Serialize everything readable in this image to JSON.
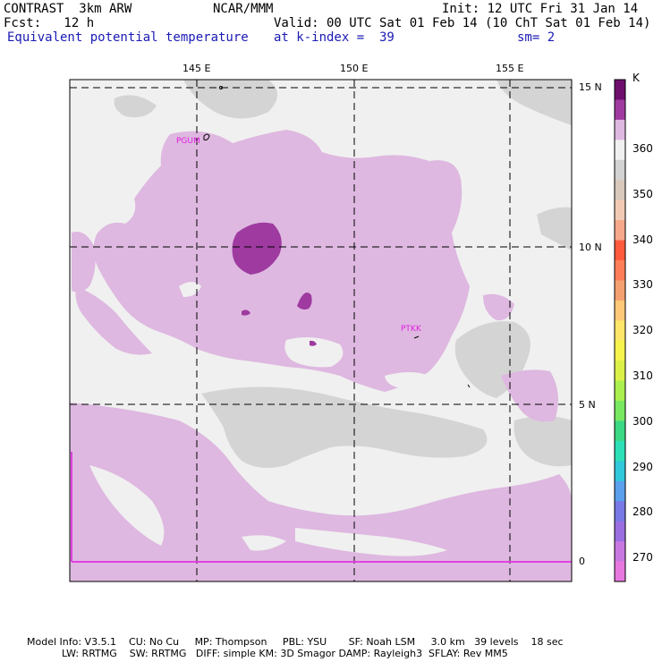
{
  "header": {
    "model": "CONTRAST  3km ARW",
    "org": "NCAR/MMM",
    "init": "Init: 12 UTC Fri 31 Jan 14",
    "fcst": "Fcst:   12 h",
    "valid": "Valid: 00 UTC Sat 01 Feb 14 (10 ChT Sat 01 Feb 14)",
    "field": "Equivalent potential temperature",
    "level": "at k-index =  39",
    "smooth": "sm= 2"
  },
  "axes": {
    "lon_labels": [
      "145 E",
      "150 E",
      "155 E"
    ],
    "lat_labels": [
      "15 N",
      "10 N",
      "5 N",
      "0"
    ]
  },
  "stations": [
    "PGUM",
    "PTKK"
  ],
  "colorbar": {
    "unit": "K",
    "labels": [
      "360",
      "350",
      "340",
      "330",
      "320",
      "310",
      "300",
      "290",
      "280",
      "270"
    ],
    "colors": [
      "#6e0f6e",
      "#9e3aa0",
      "#deb8e0",
      "#f0f0f0",
      "#d2d2d2",
      "#d8c8bc",
      "#f2cab4",
      "#f6a88a",
      "#ff5a3c",
      "#ff7e5a",
      "#f4a070",
      "#ffc878",
      "#ffe66a",
      "#f6f24e",
      "#dcf04a",
      "#aaf050",
      "#78e862",
      "#3cd884",
      "#2ee0b8",
      "#32c8dc",
      "#5aa0ec",
      "#7878e6",
      "#9a6ee0",
      "#c878e0",
      "#e678e0"
    ]
  },
  "footer": {
    "line1": "Model Info: V3.5.1    CU: No Cu     MP: Thompson     PBL: YSU       SF: Noah LSM     3.0 km   39 levels    18 sec",
    "line2": "LW: RRTMG    SW: RRTMG   DIFF: simple KM: 3D Smagor DAMP: Rayleigh3  SFLAY: Rev MM5"
  }
}
